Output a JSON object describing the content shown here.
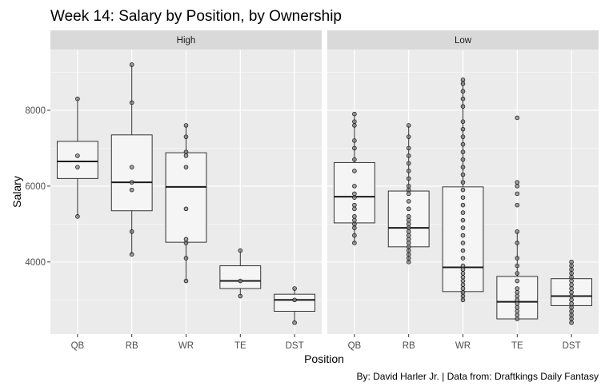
{
  "chart_data": {
    "type": "boxplot",
    "title": "Week 14: Salary by Position, by Ownership",
    "xlabel": "Position",
    "ylabel": "Salary",
    "caption": "By: David Harler Jr. | Data from: Draftkings Daily Fantasy",
    "categories": [
      "QB",
      "RB",
      "WR",
      "TE",
      "DST"
    ],
    "y_ticks": [
      4000,
      6000,
      8000
    ],
    "y_tick_labels": [
      "4000",
      "6000",
      "8000"
    ],
    "ylim": [
      2100,
      9600
    ],
    "grid": true,
    "colors": {
      "panel_bg": "#ebebeb",
      "strip_bg": "#d9d9d9",
      "grid_major": "#ffffff",
      "box_fill": "#f5f5f5",
      "box_line": "#333333",
      "point_fill": "#7f7f7f",
      "point_stroke": "#1a1a1a"
    },
    "panels": [
      {
        "label": "High",
        "boxes": [
          {
            "category": "QB",
            "q1": 6200,
            "median": 6650,
            "q3": 7180,
            "whisker_low": 5200,
            "whisker_high": 8300,
            "points": [
              8300,
              6800,
              6500,
              5200
            ]
          },
          {
            "category": "RB",
            "q1": 5350,
            "median": 6100,
            "q3": 7350,
            "whisker_low": 4200,
            "whisker_high": 9200,
            "points": [
              9200,
              8200,
              6500,
              6100,
              5900,
              4800,
              4200
            ]
          },
          {
            "category": "WR",
            "q1": 4520,
            "median": 5980,
            "q3": 6880,
            "whisker_low": 3500,
            "whisker_high": 7600,
            "points": [
              7600,
              7300,
              6900,
              6800,
              6500,
              5400,
              4600,
              4500,
              4100,
              3500
            ]
          },
          {
            "category": "TE",
            "q1": 3300,
            "median": 3500,
            "q3": 3900,
            "whisker_low": 3100,
            "whisker_high": 4300,
            "points": [
              4300,
              3500,
              3100
            ]
          },
          {
            "category": "DST",
            "q1": 2700,
            "median": 3000,
            "q3": 3150,
            "whisker_low": 2400,
            "whisker_high": 3300,
            "points": [
              3300,
              3000,
              2400
            ]
          }
        ]
      },
      {
        "label": "Low",
        "boxes": [
          {
            "category": "QB",
            "q1": 5030,
            "median": 5720,
            "q3": 6620,
            "whisker_low": 4500,
            "whisker_high": 7900,
            "points": [
              7900,
              7700,
              7600,
              7200,
              7000,
              6700,
              6400,
              6000,
              5800,
              5700,
              5500,
              5400,
              5200,
              5100,
              5000,
              4900,
              4700,
              4500
            ]
          },
          {
            "category": "RB",
            "q1": 4400,
            "median": 4900,
            "q3": 5870,
            "whisker_low": 4000,
            "whisker_high": 7600,
            "points": [
              7600,
              7300,
              7000,
              6800,
              6600,
              6400,
              6200,
              6000,
              5900,
              5800,
              5600,
              5400,
              5200,
              5100,
              5000,
              4900,
              4800,
              4700,
              4600,
              4500,
              4400,
              4300,
              4200,
              4100,
              4000
            ]
          },
          {
            "category": "WR",
            "q1": 3220,
            "median": 3860,
            "q3": 5980,
            "whisker_low": 3000,
            "whisker_high": 8800,
            "points": [
              8800,
              8700,
              8500,
              8300,
              8100,
              7700,
              7500,
              7300,
              7100,
              6900,
              6700,
              6500,
              6300,
              6100,
              5900,
              5700,
              5500,
              5300,
              5100,
              4900,
              4700,
              4500,
              4300,
              4100,
              3900,
              3800,
              3700,
              3600,
              3500,
              3400,
              3300,
              3200,
              3100,
              3000
            ]
          },
          {
            "category": "TE",
            "q1": 2500,
            "median": 2950,
            "q3": 3620,
            "whisker_low": 2500,
            "whisker_high": 4800,
            "points": [
              7800,
              6100,
              6000,
              5800,
              5500,
              4800,
              4500,
              4100,
              3900,
              3700,
              3500,
              3300,
              3200,
              3100,
              3000,
              2900,
              2800,
              2700,
              2600,
              2500
            ]
          },
          {
            "category": "DST",
            "q1": 2850,
            "median": 3100,
            "q3": 3560,
            "whisker_low": 2400,
            "whisker_high": 4000,
            "points": [
              4000,
              3900,
              3800,
              3700,
              3600,
              3500,
              3400,
              3300,
              3200,
              3100,
              3000,
              2900,
              2800,
              2700,
              2600,
              2500,
              2400
            ]
          }
        ]
      }
    ]
  }
}
